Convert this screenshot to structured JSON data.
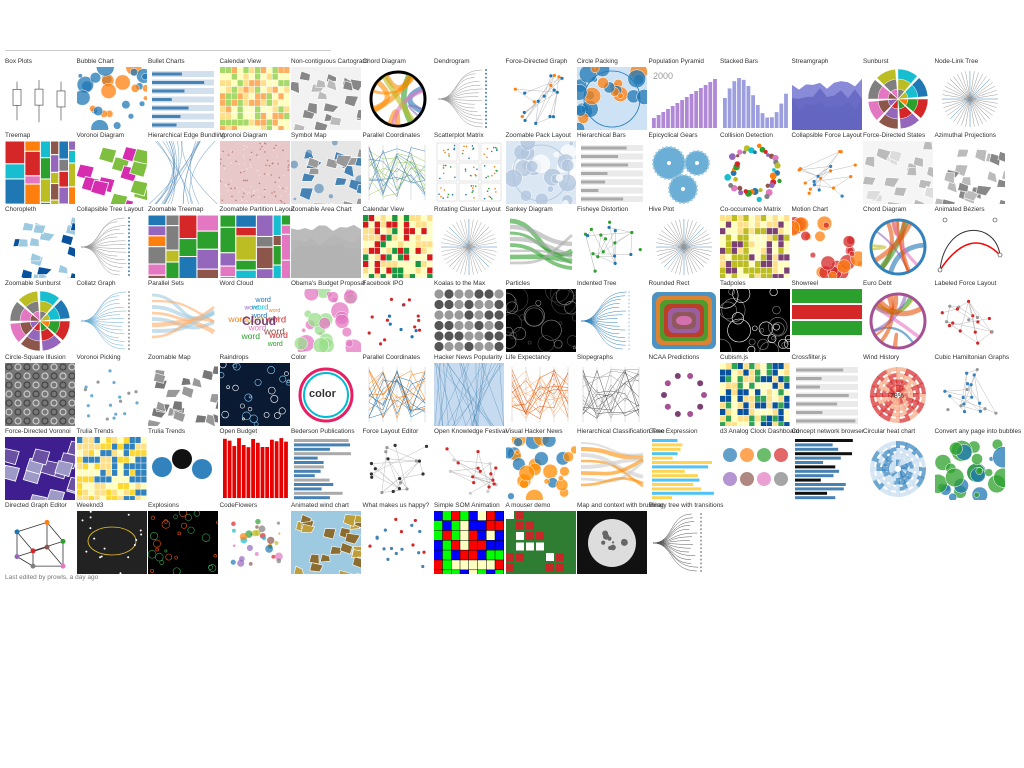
{
  "page": {
    "footer": "Last edited by prowls, a day ago"
  },
  "rows": [
    [
      {
        "label": "Box Plots",
        "thumb": "boxplot",
        "bg": "#ffffff",
        "c1": "#555555",
        "c2": "#aaaaaa"
      },
      {
        "label": "Bubble Chart",
        "thumb": "bubbles",
        "bg": "#ffffff",
        "c1": "#1f77b4",
        "c2": "#ff7f0e"
      },
      {
        "label": "Bullet Charts",
        "thumb": "bullets",
        "bg": "#ffffff",
        "c1": "#cccccc",
        "c2": "#4682b4"
      },
      {
        "label": "Calendar View",
        "thumb": "calendar",
        "bg": "#ffffff",
        "c1": "#a6d96a",
        "c2": "#fdae61"
      },
      {
        "label": "Non-contiguous Cartogram",
        "thumb": "map",
        "bg": "#f2f2f2",
        "c1": "#bbbbbb",
        "c2": "#888888"
      },
      {
        "label": "Chord Diagram",
        "thumb": "chord",
        "bg": "#ffffff",
        "c1": "#ff8c00",
        "c2": "#000000"
      },
      {
        "label": "Dendrogram",
        "thumb": "tree",
        "bg": "#ffffff",
        "c1": "#999999",
        "c2": "#4682b4"
      },
      {
        "label": "Force-Directed Graph",
        "thumb": "network",
        "bg": "#ffffff",
        "c1": "#1f77b4",
        "c2": "#ff7f0e"
      },
      {
        "label": "Circle Packing",
        "thumb": "packing",
        "bg": "#cde3f5",
        "c1": "#1f77b4",
        "c2": "#ff7f0e"
      },
      {
        "label": "Population Pyramid",
        "thumb": "pyramid",
        "bg": "#ffffff",
        "c1": "#b088d6",
        "c2": "#999999",
        "text": "2000"
      },
      {
        "label": "Stacked Bars",
        "thumb": "stackbars",
        "bg": "#ffffff",
        "c1": "#9c9ede",
        "c2": "#393b79"
      },
      {
        "label": "Streamgraph",
        "thumb": "stream",
        "bg": "#ffffff",
        "c1": "#6b6ecf",
        "c2": "#393b79"
      },
      {
        "label": "Sunburst",
        "thumb": "sunburst",
        "bg": "#ffffff",
        "c1": "#ff7f0e",
        "c2": "#1f77b4"
      },
      {
        "label": "Node-Link Tree",
        "thumb": "radialtree",
        "bg": "#ffffff",
        "c1": "#999999",
        "c2": "#4682b4"
      }
    ],
    [
      {
        "label": "Treemap",
        "thumb": "treemap",
        "bg": "#ffffff",
        "c1": "#1f77b4",
        "c2": "#ff7f0e"
      },
      {
        "label": "Voronoi Diagram",
        "thumb": "voronoi",
        "bg": "#ffffff",
        "c1": "#7fbf3f",
        "c2": "#d62cb0"
      },
      {
        "label": "Hierarchical Edge Bundling",
        "thumb": "bundling",
        "bg": "#ffffff",
        "c1": "#4682b4",
        "c2": "#999999"
      },
      {
        "label": "Voronoi Diagram",
        "thumb": "noise",
        "bg": "#e8c8c8",
        "c1": "#c08080",
        "c2": "#f0e0e0"
      },
      {
        "label": "Symbol Map",
        "thumb": "symbolmap",
        "bg": "#e6e6e6",
        "c1": "#4682b4",
        "c2": "#999999"
      },
      {
        "label": "Parallel Coordinates",
        "thumb": "parallel",
        "bg": "#ffffff",
        "c1": "#4682b4",
        "c2": "#9ccc65"
      },
      {
        "label": "Scatterplot Matrix",
        "thumb": "splom",
        "bg": "#ffffff",
        "c1": "#2ca02c",
        "c2": "#d62728"
      },
      {
        "label": "Zoomable Pack Layout",
        "thumb": "packing",
        "bg": "#dbe8f4",
        "c1": "#b0c4de",
        "c2": "#ffffff"
      },
      {
        "label": "Hierarchical Bars",
        "thumb": "hbars",
        "bg": "#ffffff",
        "c1": "#4682b4",
        "c2": "#aaaaaa"
      },
      {
        "label": "Epicyclical Gears",
        "thumb": "gears",
        "bg": "#ffffff",
        "c1": "#6baed6",
        "c2": "#9ecae1"
      },
      {
        "label": "Collision Detection",
        "thumb": "ring",
        "bg": "#ffffff",
        "c1": "#2ca02c",
        "c2": "#ff7f0e"
      },
      {
        "label": "Collapsible Force Layout",
        "thumb": "network",
        "bg": "#ffffff",
        "c1": "#ff7f0e",
        "c2": "#3182bd"
      },
      {
        "label": "Force-Directed States",
        "thumb": "map",
        "bg": "#f5f5f5",
        "c1": "#dddddd",
        "c2": "#bbbbbb"
      },
      {
        "label": "Azimuthal Projections",
        "thumb": "map",
        "bg": "#ffffff",
        "c1": "#bbbbbb",
        "c2": "#888888"
      }
    ],
    [
      {
        "label": "Choropleth",
        "thumb": "choropleth",
        "bg": "#ffffff",
        "c1": "#08519c",
        "c2": "#9ecae1"
      },
      {
        "label": "Collapsible Tree Layout",
        "thumb": "tree",
        "bg": "#ffffff",
        "c1": "#999999",
        "c2": "#4682b4"
      },
      {
        "label": "Zoomable Treemap",
        "thumb": "treemap",
        "bg": "#ffffff",
        "c1": "#9467bd",
        "c2": "#ff7f0e"
      },
      {
        "label": "Zoomable Partition Layout",
        "thumb": "partition",
        "bg": "#ffffff",
        "c1": "#4682b4",
        "c2": "#9ecae1"
      },
      {
        "label": "Zoomable Area Chart",
        "thumb": "area",
        "bg": "#ffffff",
        "c1": "#aaaaaa",
        "c2": "#dddddd"
      },
      {
        "label": "Calendar View",
        "thumb": "calendar",
        "bg": "#ffffff",
        "c1": "#1a9641",
        "c2": "#d7191c"
      },
      {
        "label": "Rotating Cluster Layout",
        "thumb": "radialtree",
        "bg": "#ffffff",
        "c1": "#aaaaaa",
        "c2": "#4682b4"
      },
      {
        "label": "Sankey Diagram",
        "thumb": "sankey",
        "bg": "#ffffff",
        "c1": "#aaaaaa",
        "c2": "#2ca02c"
      },
      {
        "label": "Fisheye Distortion",
        "thumb": "network",
        "bg": "#ffffff",
        "c1": "#2ca02c",
        "c2": "#1f77b4"
      },
      {
        "label": "Hive Plot",
        "thumb": "hive",
        "bg": "#ffffff",
        "c1": "#999999",
        "c2": "#4682b4"
      },
      {
        "label": "Co-occurrence Matrix",
        "thumb": "matrix",
        "bg": "#ffffff",
        "c1": "#bcbd22",
        "c2": "#7b4173"
      },
      {
        "label": "Motion Chart",
        "thumb": "bubbles",
        "bg": "#ffffff",
        "c1": "#d62728",
        "c2": "#ff7f0e"
      },
      {
        "label": "Chord Diagram",
        "thumb": "chord",
        "bg": "#ffffff",
        "c1": "#e6550d",
        "c2": "#3182bd"
      },
      {
        "label": "Animated Béziers",
        "thumb": "bezier",
        "bg": "#ffffff",
        "c1": "#ff0000",
        "c2": "#333333"
      }
    ],
    [
      {
        "label": "Zoomable Sunburst",
        "thumb": "sunburst",
        "bg": "#ffffff",
        "c1": "#ff7f0e",
        "c2": "#8c564b"
      },
      {
        "label": "Collatz Graph",
        "thumb": "tree",
        "bg": "#ffffff",
        "c1": "#6baed6",
        "c2": "#999999"
      },
      {
        "label": "Parallel Sets",
        "thumb": "parsets",
        "bg": "#ffffff",
        "c1": "#fdae6b",
        "c2": "#9ecae1"
      },
      {
        "label": "Word Cloud",
        "thumb": "wordcloud",
        "bg": "#ffffff",
        "c1": "#7b4173",
        "c2": "#2ca02c",
        "text": "Cloud"
      },
      {
        "label": "Obama's Budget Proposal",
        "thumb": "bubbles",
        "bg": "#ffffff",
        "c1": "#e377c2",
        "c2": "#98df8a"
      },
      {
        "label": "Facebook IPO",
        "thumb": "scatter",
        "bg": "#ffffff",
        "c1": "#d62728",
        "c2": "#1f77b4"
      },
      {
        "label": "Koalas to the Max",
        "thumb": "grid",
        "bg": "#ffffff",
        "c1": "#555555",
        "c2": "#999999"
      },
      {
        "label": "Particles",
        "thumb": "particles",
        "bg": "#000000",
        "c1": "#888888",
        "c2": "#444444"
      },
      {
        "label": "Indented Tree",
        "thumb": "indented",
        "bg": "#ffffff",
        "c1": "#3182bd",
        "c2": "#c6dbef"
      },
      {
        "label": "Rounded Rect",
        "thumb": "roundrect",
        "bg": "#ffffff",
        "c1": "#8bc34a",
        "c2": "#7e57c2"
      },
      {
        "label": "Tadpoles",
        "thumb": "particles",
        "bg": "#000000",
        "c1": "#ffffff",
        "c2": "#888888"
      },
      {
        "label": "Showreel",
        "thumb": "showreel",
        "bg": "#ffffff",
        "c1": "#d62728",
        "c2": "#2ca02c"
      },
      {
        "label": "Euro Debt",
        "thumb": "chord",
        "bg": "#ffffff",
        "c1": "#e6550d",
        "c2": "#a55194"
      },
      {
        "label": "Labeled Force Layout",
        "thumb": "network",
        "bg": "#ffffff",
        "c1": "#d62728",
        "c2": "#999999"
      }
    ],
    [
      {
        "label": "Circle-Square Illusion",
        "thumb": "illusion",
        "bg": "#777777",
        "c1": "#cccccc",
        "c2": "#444444"
      },
      {
        "label": "Voronoi Picking",
        "thumb": "scatter",
        "bg": "#ffffff",
        "c1": "#6baed6",
        "c2": "#999999"
      },
      {
        "label": "Zoomable Map",
        "thumb": "map",
        "bg": "#ffffff",
        "c1": "#777777",
        "c2": "#999999"
      },
      {
        "label": "Raindrops",
        "thumb": "raindrops",
        "bg": "#0b1a33",
        "c1": "#87cefa",
        "c2": "#ffffff"
      },
      {
        "label": "Color",
        "thumb": "color",
        "bg": "#ffffff",
        "c1": "#e91e63",
        "c2": "#00bcd4",
        "text": "color"
      },
      {
        "label": "Parallel Coordinates",
        "thumb": "parallel",
        "bg": "#ffffff",
        "c1": "#ff7f0e",
        "c2": "#1f77b4"
      },
      {
        "label": "Hacker News Popularity",
        "thumb": "hn",
        "bg": "#c6dbef",
        "c1": "#4682b4",
        "c2": "#ffffff"
      },
      {
        "label": "Life Expectancy",
        "thumb": "lines",
        "bg": "#ffffff",
        "c1": "#fdae6b",
        "c2": "#e6550d"
      },
      {
        "label": "Slopegraphs",
        "thumb": "slope",
        "bg": "#ffffff",
        "c1": "#555555",
        "c2": "#999999"
      },
      {
        "label": "NCAA Predictions",
        "thumb": "ncaa",
        "bg": "#ffffff",
        "c1": "#7b4173",
        "c2": "#a55194"
      },
      {
        "label": "Cubism.js",
        "thumb": "cubism",
        "bg": "#ffffff",
        "c1": "#08519c",
        "c2": "#31a354"
      },
      {
        "label": "Crossfilter.js",
        "thumb": "crossfilter",
        "bg": "#ffffff",
        "c1": "#4682b4",
        "c2": "#aaaaaa"
      },
      {
        "label": "Wind History",
        "thumb": "wind",
        "bg": "#ffffff",
        "c1": "#d62728",
        "c2": "#f4a582",
        "text": "78%"
      },
      {
        "label": "Cubic Hamiltonian Graphs",
        "thumb": "network",
        "bg": "#ffffff",
        "c1": "#3182bd",
        "c2": "#999999"
      }
    ],
    [
      {
        "label": "Force-Directed Voronoi",
        "thumb": "voronoi",
        "bg": "#3f1f8f",
        "c1": "#6a51a3",
        "c2": "#9e9ac8"
      },
      {
        "label": "Trulia Trends",
        "thumb": "heat",
        "bg": "#ffffff",
        "c1": "#3182bd",
        "c2": "#fdd835"
      },
      {
        "label": "Trulia Trends",
        "thumb": "trulia",
        "bg": "#ffffff",
        "c1": "#3182bd",
        "c2": "#111111"
      },
      {
        "label": "Open Budget",
        "thumb": "redbars",
        "bg": "#ffffff",
        "c1": "#e60000",
        "c2": "#ffcccc"
      },
      {
        "label": "Bederson Publications",
        "thumb": "pubs",
        "bg": "#ffffff",
        "c1": "#4682b4",
        "c2": "#aaaaaa"
      },
      {
        "label": "Force Layout Editor",
        "thumb": "editor",
        "bg": "#ffffff",
        "c1": "#333333",
        "c2": "#999999"
      },
      {
        "label": "Open Knowledge Festival",
        "thumb": "network",
        "bg": "#ffffff",
        "c1": "#d62728",
        "c2": "#cccccc"
      },
      {
        "label": "Visual Hacker News",
        "thumb": "bubbles",
        "bg": "#ffffff",
        "c1": "#ff8c00",
        "c2": "#1f77b4"
      },
      {
        "label": "Hierarchical Classification Tree",
        "thumb": "sankey",
        "bg": "#ffffff",
        "c1": "#ff8c00",
        "c2": "#cccccc"
      },
      {
        "label": "Gene Expression",
        "thumb": "gene",
        "bg": "#ffffff",
        "c1": "#ffd54f",
        "c2": "#4fc3f7"
      },
      {
        "label": "d3 Analog Clock Dashboard",
        "thumb": "clocks",
        "bg": "#ffffff",
        "c1": "#ff9800",
        "c2": "#9c27b0"
      },
      {
        "label": "Concept network browser",
        "thumb": "concept",
        "bg": "#ffffff",
        "c1": "#4682b4",
        "c2": "#111111"
      },
      {
        "label": "Circular heat chart",
        "thumb": "circheat",
        "bg": "#ffffff",
        "c1": "#3182bd",
        "c2": "#c6dbef"
      },
      {
        "label": "Convert any page into bubbles",
        "thumb": "bigbubbles",
        "bg": "#ffffff",
        "c1": "#2ca02c",
        "c2": "#1f77b4"
      }
    ],
    [
      {
        "label": "Directed Graph Editor",
        "thumb": "cube",
        "bg": "#ffffff",
        "c1": "#333333",
        "c2": "#d62728"
      },
      {
        "label": "Weeknd3",
        "thumb": "weeknd",
        "bg": "#222222",
        "c1": "#e6c229",
        "c2": "#ffffff"
      },
      {
        "label": "Explosions",
        "thumb": "explosion",
        "bg": "#000000",
        "c1": "#e6550d",
        "c2": "#31a354"
      },
      {
        "label": "CodeFlowers",
        "thumb": "codeflower",
        "bg": "#ffffff",
        "c1": "#4682b4",
        "c2": "#9467bd"
      },
      {
        "label": "Animated wind chart",
        "thumb": "windmap",
        "bg": "#9ecae1",
        "c1": "#8c6d31",
        "c2": "#bd9e39"
      },
      {
        "label": "What makes us happy?",
        "thumb": "happy",
        "bg": "#ffffff",
        "c1": "#4682b4",
        "c2": "#d62728"
      },
      {
        "label": "Simple SOM Animation",
        "thumb": "som",
        "bg": "#000000",
        "c1": "#00ff00",
        "c2": "#ff0000"
      },
      {
        "label": "A mouser demo",
        "thumb": "mouser",
        "bg": "#2e7d32",
        "c1": "#c62828",
        "c2": "#ffffff"
      },
      {
        "label": "Map and context with brushing",
        "thumb": "moon",
        "bg": "#111111",
        "c1": "#dddddd",
        "c2": "#666666"
      },
      {
        "label": "Binary tree with transitions",
        "thumb": "bintree",
        "bg": "#ffffff",
        "c1": "#555555",
        "c2": "#999999"
      }
    ]
  ]
}
